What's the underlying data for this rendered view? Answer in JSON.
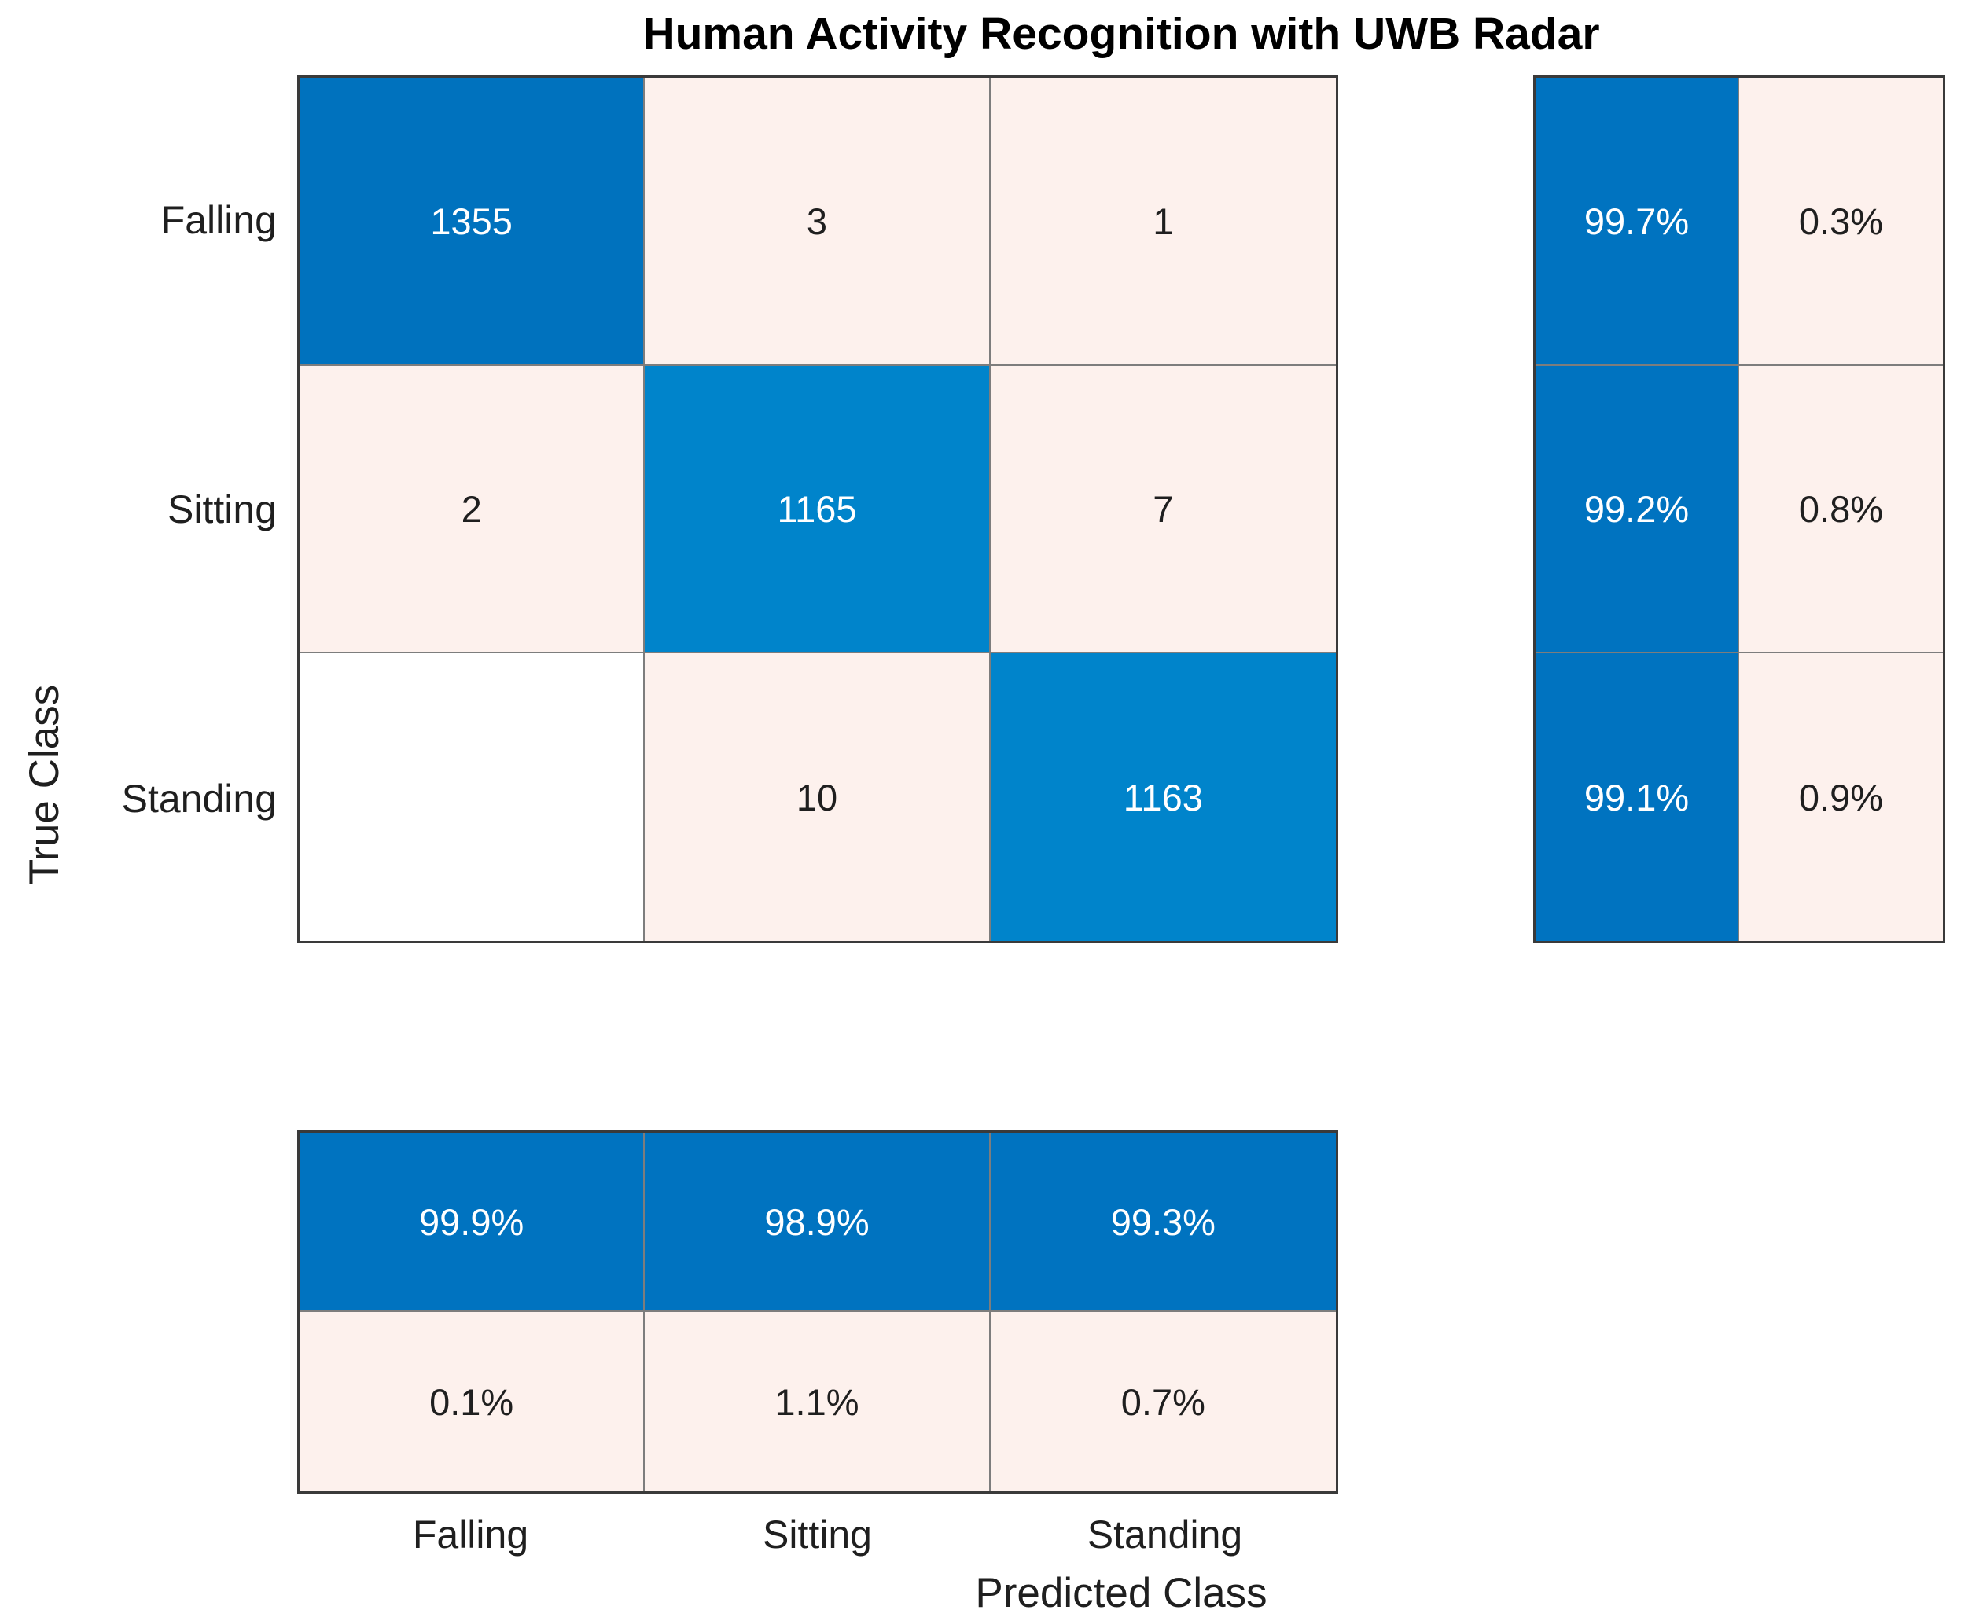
{
  "title": "Human Activity Recognition with UWB Radar",
  "chart_data": {
    "type": "heatmap",
    "subtype": "confusion_matrix",
    "title": "Human Activity Recognition with UWB Radar",
    "xlabel": "Predicted Class",
    "ylabel": "True Class",
    "categories": [
      "Falling",
      "Sitting",
      "Standing"
    ],
    "matrix": [
      [
        1355,
        3,
        1
      ],
      [
        2,
        1165,
        7
      ],
      [
        0,
        10,
        1163
      ]
    ],
    "display_matrix": [
      [
        "1355",
        "3",
        "1"
      ],
      [
        "2",
        "1165",
        "7"
      ],
      [
        "",
        "10",
        "1163"
      ]
    ],
    "row_normalized_summary": [
      [
        "99.7%",
        "0.3%"
      ],
      [
        "99.2%",
        "0.8%"
      ],
      [
        "99.1%",
        "0.9%"
      ]
    ],
    "column_normalized_summary": [
      [
        "99.9%",
        "98.9%",
        "99.3%"
      ],
      [
        "0.1%",
        "1.1%",
        "0.7%"
      ]
    ],
    "cell_styles": [
      [
        "diag-dark",
        "off",
        "off"
      ],
      [
        "off",
        "diag-light",
        "off"
      ],
      [
        "empty",
        "off",
        "diag-light"
      ]
    ],
    "row_summary_styles": [
      [
        "blue",
        "off"
      ],
      [
        "blue",
        "off"
      ],
      [
        "blue",
        "off"
      ]
    ],
    "col_summary_styles": [
      [
        "blue",
        "blue",
        "blue"
      ],
      [
        "off",
        "off",
        "off"
      ]
    ],
    "colors": {
      "diag_dark": "#0072be",
      "diag_light": "#0084cb",
      "summary_blue": "#0073c0",
      "off_diagonal": "#fdf1ed",
      "empty_cell": "#ffffff",
      "grid_line": "#7d7d7d",
      "outer_border": "#3a3a3a",
      "text_on_blue": "#ffffff",
      "text_dark": "#1f1f1f"
    }
  }
}
